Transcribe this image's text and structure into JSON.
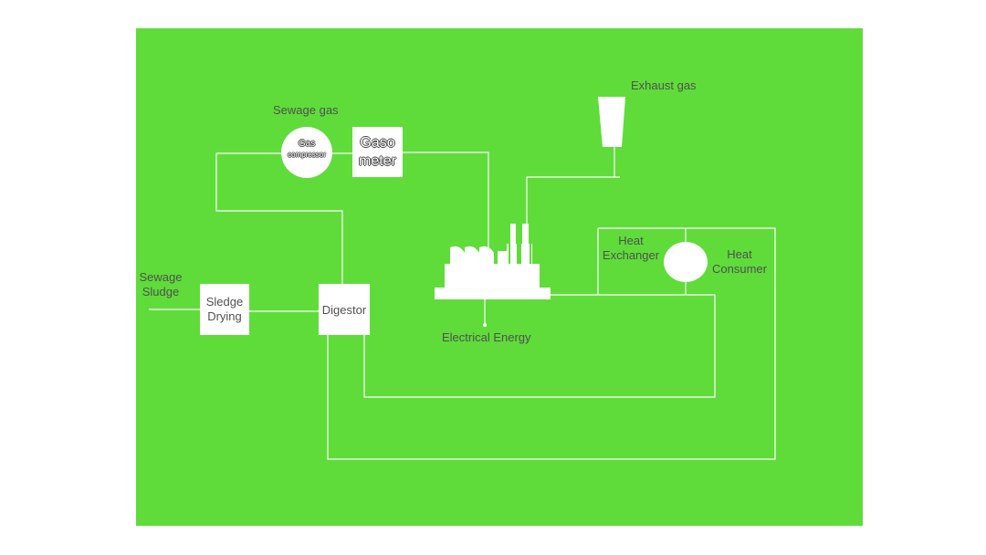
{
  "colors": {
    "background": "#5fdc3a",
    "line": "#ffffff",
    "node_fill": "#ffffff",
    "text": "#505050"
  },
  "labels": {
    "sewage_gas": "Sewage gas",
    "exhaust_gas": "Exhaust gas",
    "gas_compressor_line1": "Gas",
    "gas_compressor_line2": "compressor",
    "gasometer_line1": "Gaso",
    "gasometer_line2": "meter",
    "heat_exchanger_line1": "Heat",
    "heat_exchanger_line2": "Exchanger",
    "heat_consumer_line1": "Heat",
    "heat_consumer_line2": "Consumer",
    "sewage_sludge_line1": "Sewage",
    "sewage_sludge_line2": "Sludge",
    "sledge_drying_line1": "Sledge",
    "sledge_drying_line2": "Drying",
    "digestor": "Digestor",
    "electrical_energy": "Electrical Energy"
  },
  "icons": {
    "power_plant": "factory-icon",
    "exhaust": "chimney-icon"
  }
}
